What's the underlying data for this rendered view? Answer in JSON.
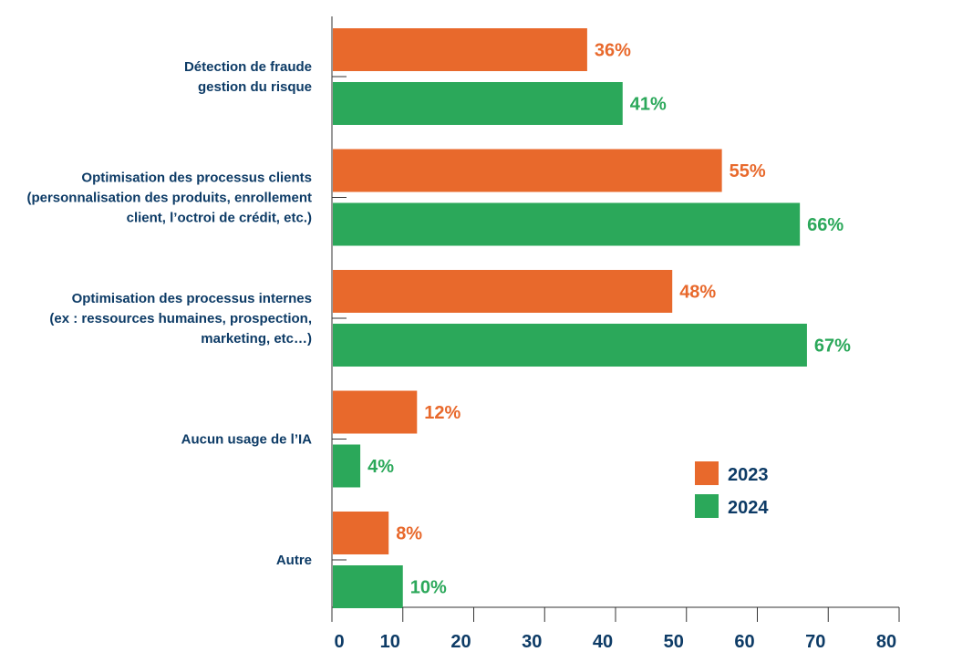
{
  "chart_data": {
    "type": "bar",
    "orientation": "horizontal",
    "categories": [
      [
        "Détection de fraude",
        "gestion du risque"
      ],
      [
        "Optimisation des processus clients",
        "(personnalisation des produits, enrollement",
        "client, l’octroi de crédit, etc.)"
      ],
      [
        "Optimisation des processus internes",
        "(ex : ressources humaines, prospection,",
        "marketing, etc…)"
      ],
      [
        "Aucun usage de l’IA"
      ],
      [
        "Autre"
      ]
    ],
    "series": [
      {
        "name": "2023",
        "color": "#e8692c",
        "values": [
          36,
          55,
          48,
          12,
          8
        ],
        "labels": [
          "36%",
          "55%",
          "48%",
          "12%",
          "8%"
        ]
      },
      {
        "name": "2024",
        "color": "#2ba85a",
        "values": [
          41,
          66,
          67,
          4,
          10
        ],
        "labels": [
          "41%",
          "66%",
          "67%",
          "4%",
          "10%"
        ]
      }
    ],
    "xlim": [
      0,
      80
    ],
    "xticks": [
      0,
      10,
      20,
      30,
      40,
      50,
      60,
      70,
      80
    ],
    "grid": false,
    "legend_position": "bottom-right",
    "text_color": "#0d3b66"
  }
}
